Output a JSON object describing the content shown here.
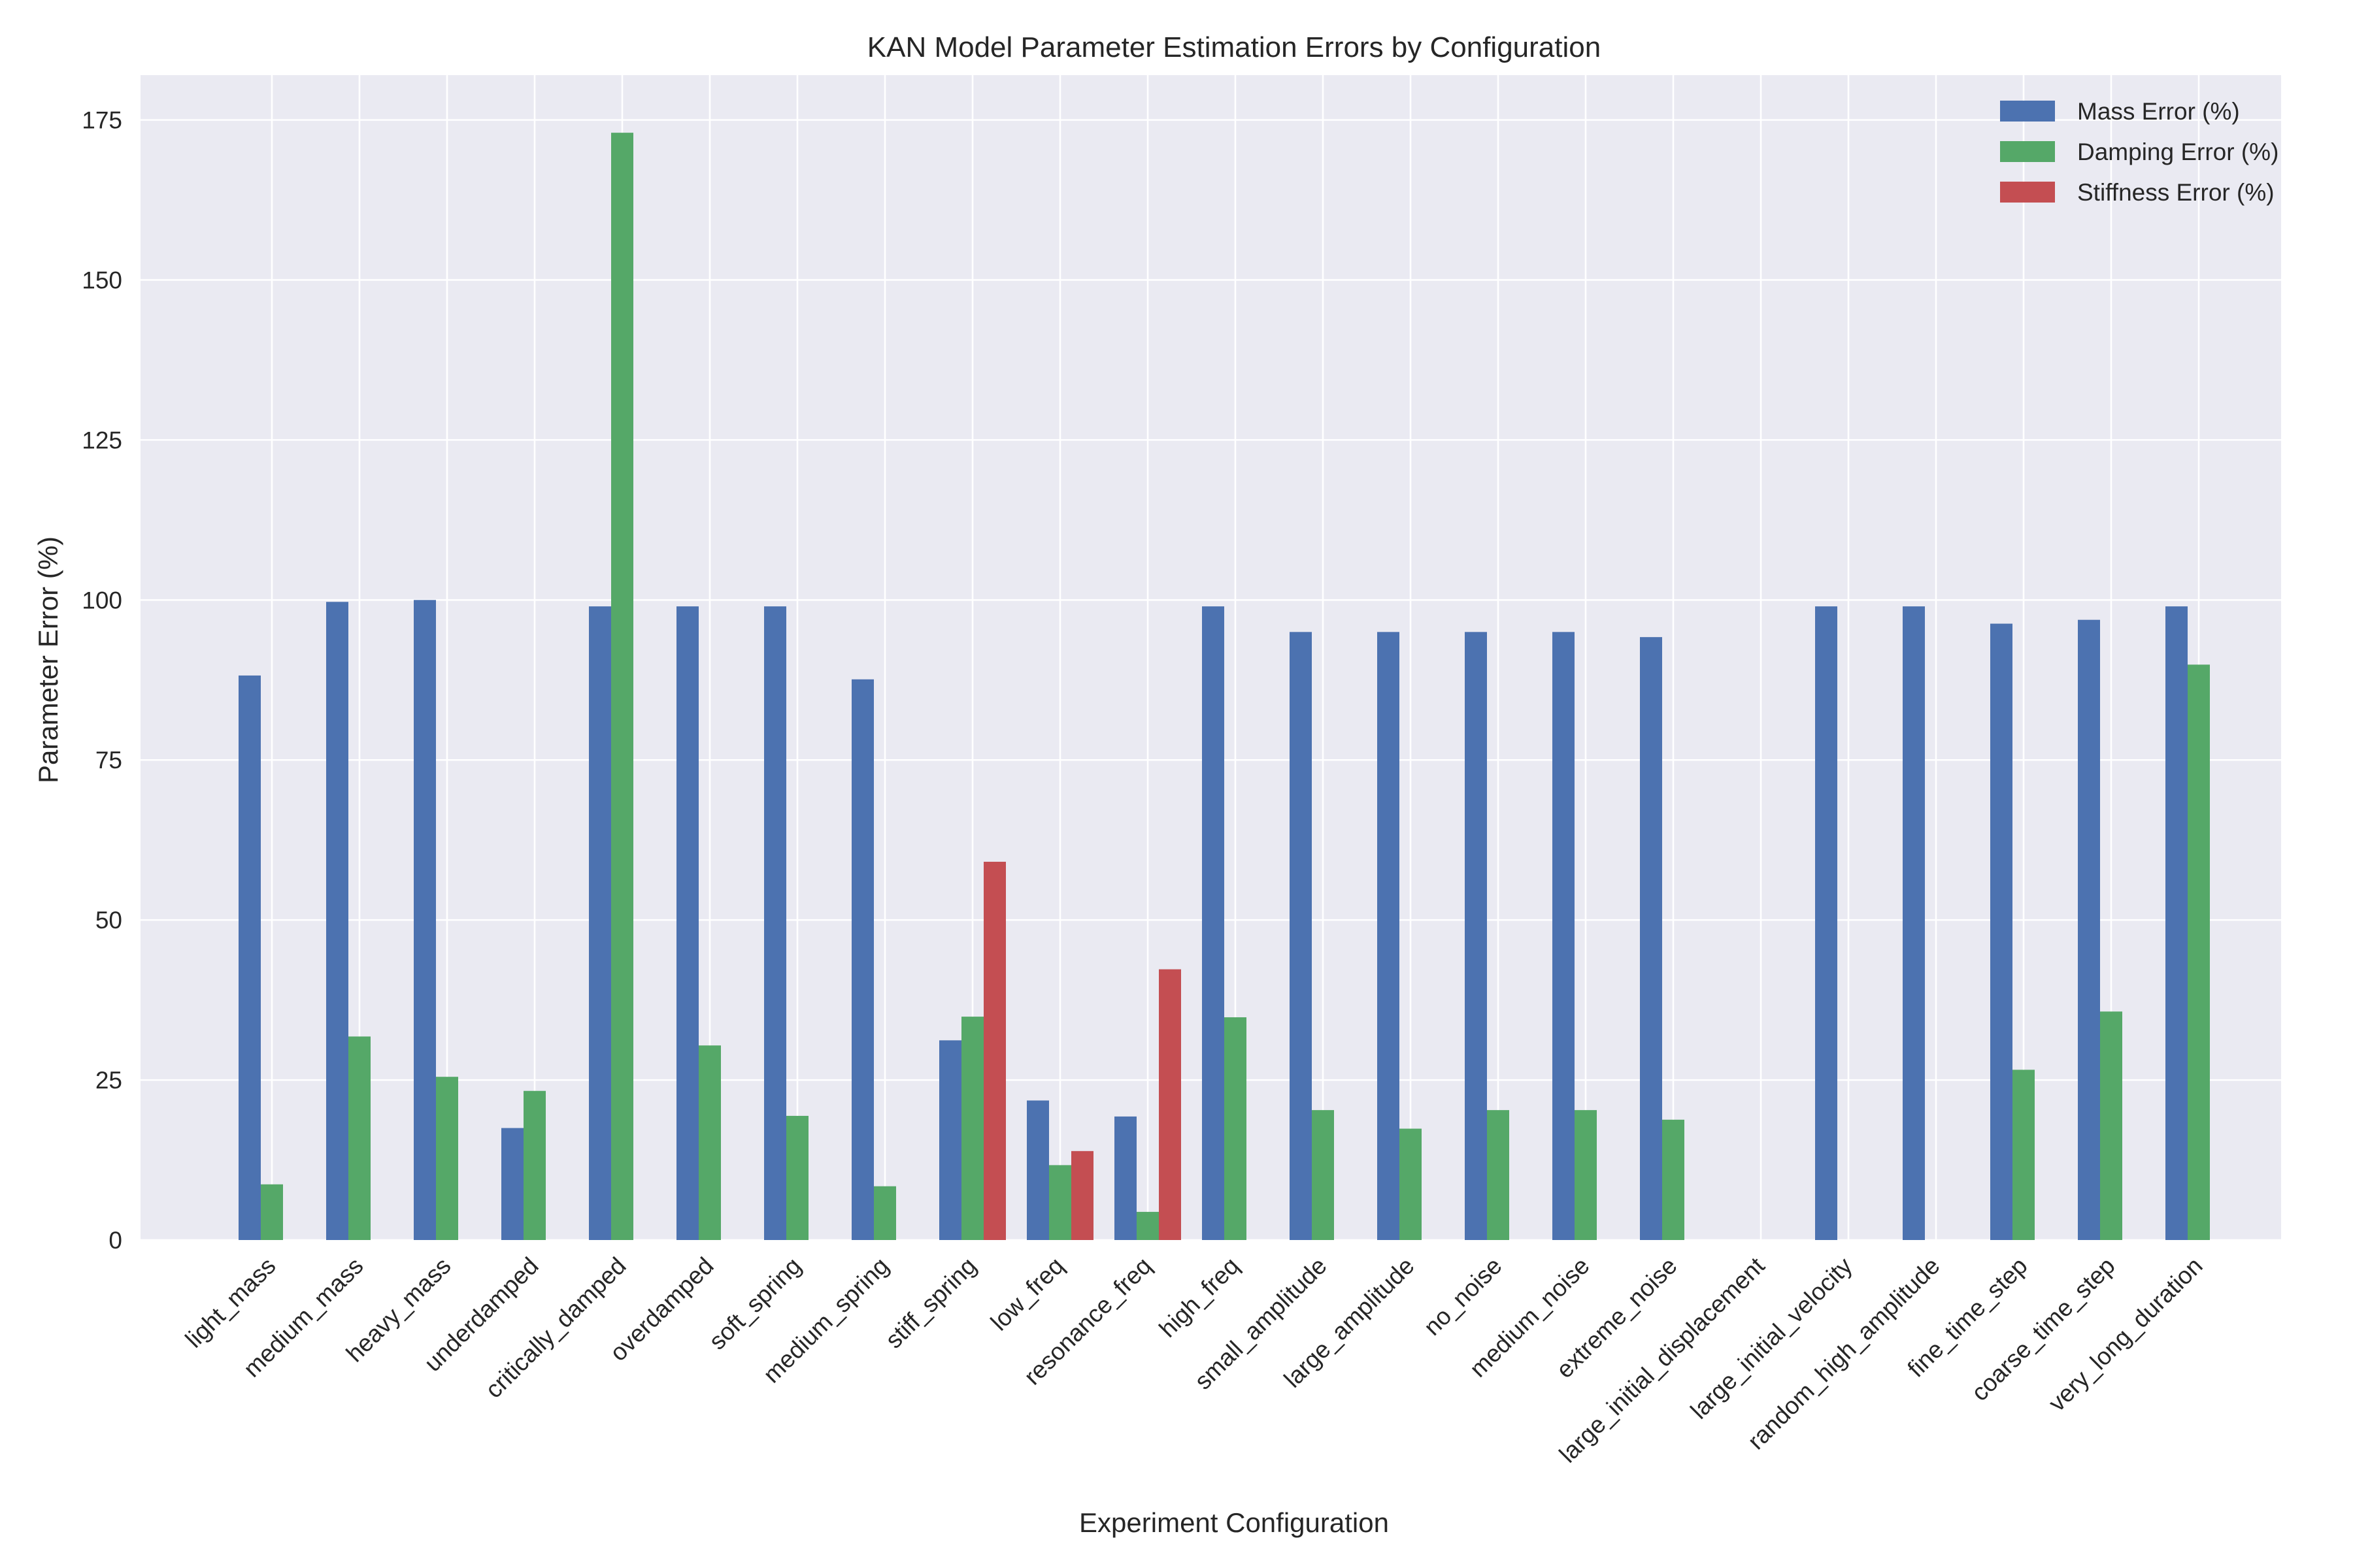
{
  "chart_data": {
    "type": "bar",
    "title": "KAN Model Parameter Estimation Errors by Configuration",
    "xlabel": "Experiment Configuration",
    "ylabel": "Parameter Error (%)",
    "ylim": [
      0,
      182
    ],
    "yticks": [
      0,
      25,
      50,
      75,
      100,
      125,
      150,
      175
    ],
    "grid": true,
    "legend_position": "top-right",
    "categories": [
      "light_mass",
      "medium_mass",
      "heavy_mass",
      "underdamped",
      "critically_damped",
      "overdamped",
      "soft_spring",
      "medium_spring",
      "stiff_spring",
      "low_freq",
      "resonance_freq",
      "high_freq",
      "small_amplitude",
      "large_amplitude",
      "no_noise",
      "medium_noise",
      "extreme_noise",
      "large_initial_displacement",
      "large_initial_velocity",
      "random_high_amplitude",
      "fine_time_step",
      "coarse_time_step",
      "very_long_duration"
    ],
    "series": [
      {
        "name": "Mass Error (%)",
        "color": "#4c72b0",
        "values": [
          88.2,
          99.7,
          100.0,
          17.5,
          99.0,
          99.0,
          99.0,
          87.6,
          31.2,
          21.8,
          19.3,
          99.0,
          95.0,
          95.0,
          95.0,
          95.0,
          94.2,
          0,
          99.0,
          99.0,
          96.3,
          96.9,
          99.0
        ]
      },
      {
        "name": "Damping Error (%)",
        "color": "#55a868",
        "values": [
          8.7,
          31.8,
          25.5,
          23.3,
          173.0,
          30.4,
          19.4,
          8.4,
          34.9,
          11.7,
          4.4,
          34.8,
          20.3,
          17.4,
          20.3,
          20.3,
          18.8,
          0,
          0,
          0,
          26.6,
          35.7,
          89.9
        ]
      },
      {
        "name": "Stiffness Error (%)",
        "color": "#c44e52",
        "values": [
          0,
          0,
          0,
          0,
          0,
          0,
          0,
          0,
          59.1,
          13.9,
          42.3,
          0,
          0,
          0,
          0,
          0,
          0,
          0,
          0,
          0,
          0,
          0,
          0
        ]
      }
    ]
  }
}
